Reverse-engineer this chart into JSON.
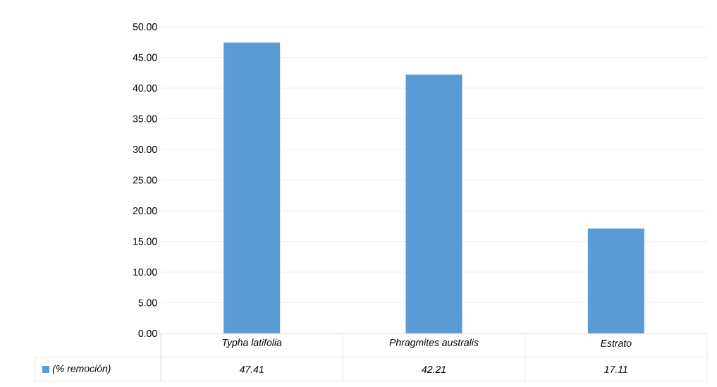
{
  "chart_data": {
    "type": "bar",
    "categories": [
      "Typha latifolia",
      "Phragmites australis",
      "Estrato"
    ],
    "series": [
      {
        "name": "(% remoción)",
        "color": "#5b9bd5",
        "values": [
          47.41,
          42.21,
          17.11
        ]
      }
    ],
    "ylim": [
      0,
      50
    ],
    "yticks": [
      {
        "value": 0,
        "label": "0.00"
      },
      {
        "value": 5,
        "label": "5.00"
      },
      {
        "value": 10,
        "label": "10.00"
      },
      {
        "value": 15,
        "label": "15.00"
      },
      {
        "value": 20,
        "label": "20.00"
      },
      {
        "value": 25,
        "label": "25.00"
      },
      {
        "value": 30,
        "label": "30.00"
      },
      {
        "value": 35,
        "label": "35.00"
      },
      {
        "value": 40,
        "label": "40.00"
      },
      {
        "value": 45,
        "label": "45.00"
      },
      {
        "value": 50,
        "label": "50.00"
      }
    ],
    "grid": "y",
    "legend": "bottom",
    "data_labels": true
  }
}
